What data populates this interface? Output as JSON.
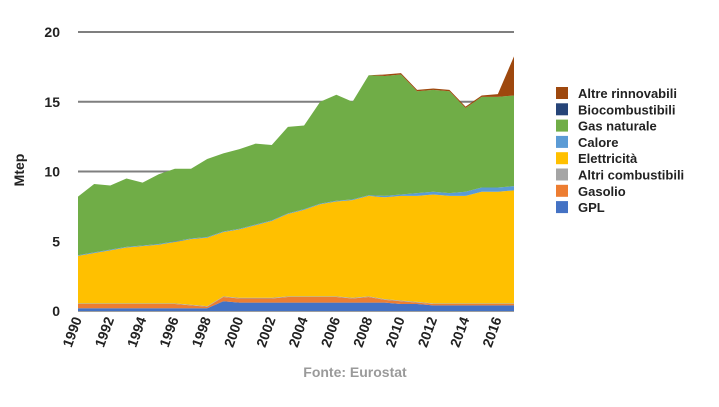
{
  "chart_data": {
    "type": "area",
    "stacked": true,
    "ylabel": "Mtep",
    "source_note": "Fonte: Eurostat",
    "ylim": [
      0,
      20
    ],
    "y_ticks": [
      "0",
      "5",
      "10",
      "15",
      "20"
    ],
    "grid": "horizontal",
    "legend_position": "right",
    "x": [
      1990,
      1991,
      1992,
      1993,
      1994,
      1995,
      1996,
      1997,
      1998,
      1999,
      2000,
      2001,
      2002,
      2003,
      2004,
      2005,
      2006,
      2007,
      2008,
      2009,
      2010,
      2011,
      2012,
      2013,
      2014,
      2015,
      2016,
      2017
    ],
    "x_tick_labels": [
      "1990",
      "1992",
      "1994",
      "1996",
      "1998",
      "2000",
      "2002",
      "2004",
      "2006",
      "2008",
      "2010",
      "2012",
      "2014",
      "2016"
    ],
    "series": [
      {
        "name": "GPL",
        "color": "#4472c4",
        "values": [
          0.2,
          0.2,
          0.2,
          0.2,
          0.2,
          0.2,
          0.2,
          0.2,
          0.2,
          0.7,
          0.6,
          0.6,
          0.6,
          0.6,
          0.6,
          0.6,
          0.6,
          0.6,
          0.6,
          0.6,
          0.5,
          0.5,
          0.4,
          0.4,
          0.4,
          0.4,
          0.4,
          0.4
        ]
      },
      {
        "name": "Gasolio",
        "color": "#ed7d31",
        "values": [
          0.3,
          0.3,
          0.3,
          0.3,
          0.3,
          0.3,
          0.3,
          0.2,
          0.1,
          0.3,
          0.3,
          0.3,
          0.3,
          0.4,
          0.4,
          0.4,
          0.4,
          0.3,
          0.4,
          0.2,
          0.2,
          0.1,
          0.1,
          0.1,
          0.1,
          0.1,
          0.1,
          0.1
        ]
      },
      {
        "name": "Altri combustibili",
        "color": "#a5a5a5",
        "values": [
          0.05,
          0.05,
          0.05,
          0.05,
          0.05,
          0.05,
          0.05,
          0.05,
          0.05,
          0.05,
          0.05,
          0.05,
          0.05,
          0.05,
          0.05,
          0.05,
          0.05,
          0.05,
          0.05,
          0.05,
          0.05,
          0.05,
          0.05,
          0.05,
          0.05,
          0.05,
          0.05,
          0.05
        ]
      },
      {
        "name": "Elettricità",
        "color": "#ffc000",
        "values": [
          3.4,
          3.6,
          3.8,
          4.0,
          4.1,
          4.2,
          4.4,
          4.7,
          4.9,
          4.6,
          4.9,
          5.2,
          5.5,
          5.9,
          6.2,
          6.6,
          6.8,
          7.0,
          7.2,
          7.3,
          7.5,
          7.6,
          7.8,
          7.7,
          7.7,
          8.0,
          8.0,
          8.1
        ]
      },
      {
        "name": "Calore",
        "color": "#5b9bd5",
        "values": [
          0.05,
          0.05,
          0.05,
          0.05,
          0.05,
          0.05,
          0.05,
          0.05,
          0.05,
          0.05,
          0.05,
          0.05,
          0.05,
          0.05,
          0.05,
          0.05,
          0.05,
          0.05,
          0.05,
          0.1,
          0.1,
          0.2,
          0.2,
          0.2,
          0.3,
          0.3,
          0.3,
          0.3
        ]
      },
      {
        "name": "Gas naturale",
        "color": "#70ad47",
        "values": [
          4.2,
          4.9,
          4.6,
          4.9,
          4.5,
          5.0,
          5.2,
          5.0,
          5.6,
          5.6,
          5.7,
          5.8,
          5.4,
          6.2,
          6.0,
          7.3,
          7.6,
          7.0,
          8.6,
          8.6,
          8.6,
          7.3,
          7.3,
          7.3,
          6.0,
          6.5,
          6.5,
          6.5
        ]
      },
      {
        "name": "Biocombustibili",
        "color": "#264478",
        "values": [
          0,
          0,
          0,
          0,
          0,
          0,
          0,
          0,
          0,
          0,
          0,
          0,
          0,
          0,
          0,
          0,
          0,
          0,
          0,
          0,
          0,
          0,
          0,
          0,
          0,
          0,
          0,
          0
        ]
      },
      {
        "name": "Altre rinnovabili",
        "color": "#9e480e",
        "values": [
          0,
          0,
          0,
          0,
          0,
          0,
          0,
          0,
          0,
          0,
          0,
          0,
          0,
          0,
          0,
          0,
          0,
          0,
          0,
          0.1,
          0.1,
          0.1,
          0.1,
          0.1,
          0.1,
          0.1,
          0.2,
          2.8
        ]
      }
    ],
    "legend": [
      {
        "name": "Altre rinnovabili",
        "color": "#9e480e"
      },
      {
        "name": "Biocombustibili",
        "color": "#264478"
      },
      {
        "name": "Gas naturale",
        "color": "#70ad47"
      },
      {
        "name": "Calore",
        "color": "#5b9bd5"
      },
      {
        "name": "Elettricità",
        "color": "#ffc000"
      },
      {
        "name": "Altri combustibili",
        "color": "#a5a5a5"
      },
      {
        "name": "Gasolio",
        "color": "#ed7d31"
      },
      {
        "name": "GPL",
        "color": "#4472c4"
      }
    ]
  }
}
